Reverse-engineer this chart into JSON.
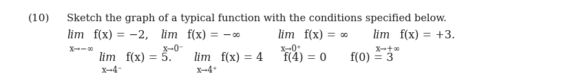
{
  "background_color": "#ffffff",
  "number": "(10)",
  "title": "Sketch the graph of a typical function with the conditions specified below.",
  "row1": [
    {
      "lim_label": "lim",
      "sub": "x→−∞",
      "expr": "f(x) = −2,"
    },
    {
      "lim_label": "lim",
      "sub": "x→0⁻",
      "expr": "f(x) = −∞"
    },
    {
      "lim_label": "lim",
      "sub": "x→0⁺",
      "expr": "f(x) = ∞"
    },
    {
      "lim_label": "lim",
      "sub": "x→+∞",
      "expr": "f(x) = +3."
    }
  ],
  "row2": [
    {
      "lim_label": "lim",
      "sub": "x→4⁻",
      "expr": "f(x) = 5."
    },
    {
      "lim_label": "lim",
      "sub": "x→4⁺",
      "expr": "f(x) = 4"
    },
    {
      "plain": "f(4) = 0"
    },
    {
      "plain": "f(0) = 3"
    }
  ],
  "text_color": "#1a1a1a",
  "font_size_title": 10.5,
  "font_size_main": 11.5,
  "font_size_sub": 8.5,
  "font_size_number": 11
}
